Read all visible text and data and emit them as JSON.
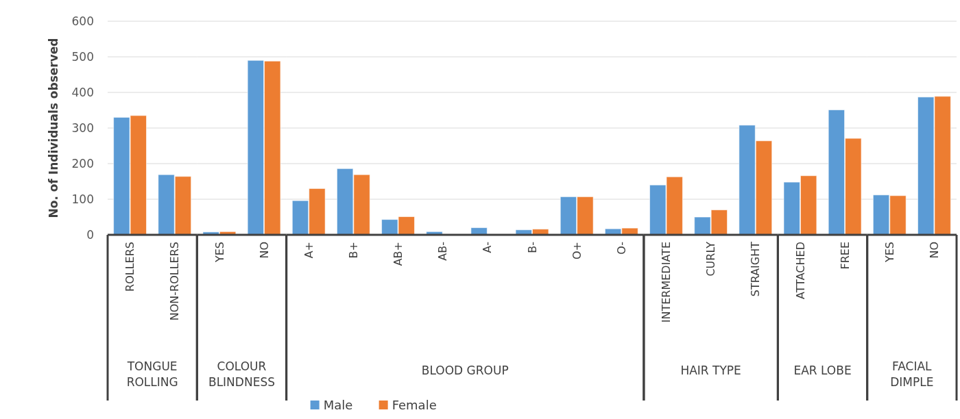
{
  "chart_data": [
    {
      "type": "bar",
      "ylabel": "No. of Individuals observed",
      "xlabel": "TONGUE ROLLING",
      "categories": [
        "ROLLERS",
        "NON-ROLLERS"
      ],
      "series": [
        {
          "color": "#5b9bd5",
          "values": [
            330,
            169
          ]
        },
        {
          "color": "#ed7d31",
          "values": [
            335,
            164
          ]
        }
      ],
      "ylim": [
        0,
        600
      ],
      "yticks": [
        0,
        100,
        200,
        300,
        400,
        500,
        600
      ],
      "grid": "y"
    },
    {
      "type": "bar",
      "xlabel": "COLOUR BLINDNESS",
      "categories": [
        "YES",
        "NO"
      ],
      "series": [
        {
          "color": "#5b9bd5",
          "values": [
            8,
            490
          ]
        },
        {
          "color": "#ed7d31",
          "values": [
            9,
            488
          ]
        }
      ],
      "ylim": [
        0,
        600
      ],
      "yticks": [
        0,
        100,
        200,
        300,
        400,
        500,
        600
      ],
      "grid": "y",
      "tick_labels": "x"
    },
    {
      "type": "bar",
      "xlabel": "BLOOD GROUP",
      "categories": [
        "A+",
        "B+",
        "AB+",
        "AB-",
        "A-",
        "B-",
        "O+",
        "O-"
      ],
      "series": [
        {
          "name": "Male",
          "color": "#5b9bd5",
          "values": [
            96,
            186,
            43,
            9,
            20,
            14,
            107,
            17
          ]
        },
        {
          "name": "Female",
          "color": "#ed7d31",
          "values": [
            130,
            169,
            51,
            0,
            0,
            16,
            107,
            19
          ]
        }
      ],
      "ylim": [
        0,
        600
      ],
      "yticks": [
        0,
        100,
        200,
        300,
        400,
        500,
        600
      ],
      "grid": "y",
      "tick_labels": "x",
      "legend": "bottom"
    },
    {
      "type": "bar",
      "xlabel": "HAIR TYPE",
      "categories": [
        "INTERMEDIATE",
        "CURLY",
        "STRAIGHT"
      ],
      "series": [
        {
          "color": "#5b9bd5",
          "values": [
            140,
            50,
            308
          ]
        },
        {
          "color": "#ed7d31",
          "values": [
            163,
            70,
            264
          ]
        }
      ],
      "ylim": [
        0,
        600
      ],
      "yticks": [
        0,
        100,
        200,
        300,
        400,
        500,
        600
      ],
      "grid": "y",
      "tick_labels": "x"
    },
    {
      "type": "bar",
      "xlabel": "EAR LOBE",
      "categories": [
        "ATTACHED",
        "FREE"
      ],
      "series": [
        {
          "color": "#5b9bd5",
          "values": [
            148,
            351
          ]
        },
        {
          "color": "#ed7d31",
          "values": [
            166,
            271
          ]
        }
      ],
      "ylim": [
        0,
        600
      ],
      "yticks": [
        0,
        100,
        200,
        300,
        400,
        500,
        600
      ],
      "grid": "y",
      "tick_labels": "x"
    },
    {
      "type": "bar",
      "xlabel": "FACIAL DIMPLE",
      "categories": [
        "YES",
        "NO"
      ],
      "series": [
        {
          "color": "#5b9bd5",
          "values": [
            112,
            387
          ]
        },
        {
          "color": "#ed7d31",
          "values": [
            110,
            389
          ]
        }
      ],
      "ylim": [
        0,
        600
      ],
      "yticks": [
        0,
        100,
        200,
        300,
        400,
        500,
        600
      ],
      "grid": "y",
      "tick_labels": "x"
    }
  ]
}
